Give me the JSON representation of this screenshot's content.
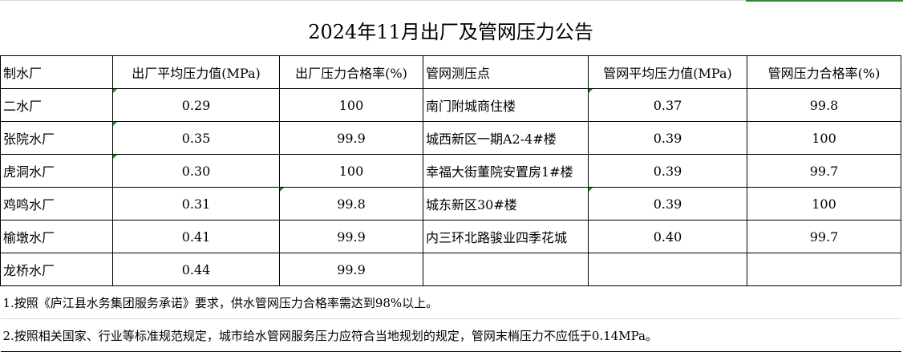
{
  "title": "2024年11月出厂及管网压力公告",
  "headers": [
    "制水厂",
    "出厂平均压力值(MPa)",
    "出厂压力合格率(%)",
    "管网测压点",
    "管网平均压力值(MPa)",
    "管网压力合格率(%)"
  ],
  "rows": [
    [
      "二水厂",
      "0.29",
      "100",
      "南门附城商住楼",
      "0.37",
      "99.8"
    ],
    [
      "张院水厂",
      "0.35",
      "99.9",
      "城西新区一期A2-4#楼",
      "0.39",
      "100"
    ],
    [
      "虎洞水厂",
      "0.30",
      "100",
      "幸福大街董院安置房1#楼",
      "0.39",
      "99.7"
    ],
    [
      "鸡鸣水厂",
      "0.31",
      "99.8",
      "城东新区30#楼",
      "0.39",
      "100"
    ],
    [
      "榆墩水厂",
      "0.41",
      "99.9",
      "内三环北路骏业四季花城",
      "0.40",
      "99.7"
    ],
    [
      "龙桥水厂",
      "0.44",
      "99.9",
      "",
      "",
      ""
    ]
  ],
  "notes": [
    "1.按照《庐江县水务集团服务承诺》要求，供水管网压力合格率需达到98%以上。",
    "2.按照相关国家、行业等标准规范规定，城市给水管网服务压力应符合当地规划的规定，管网末梢压力不应低于0.14MPa。"
  ],
  "colors": {
    "cell_marker": "#1a8a1a",
    "selection_accent": "#2e8b2e"
  }
}
